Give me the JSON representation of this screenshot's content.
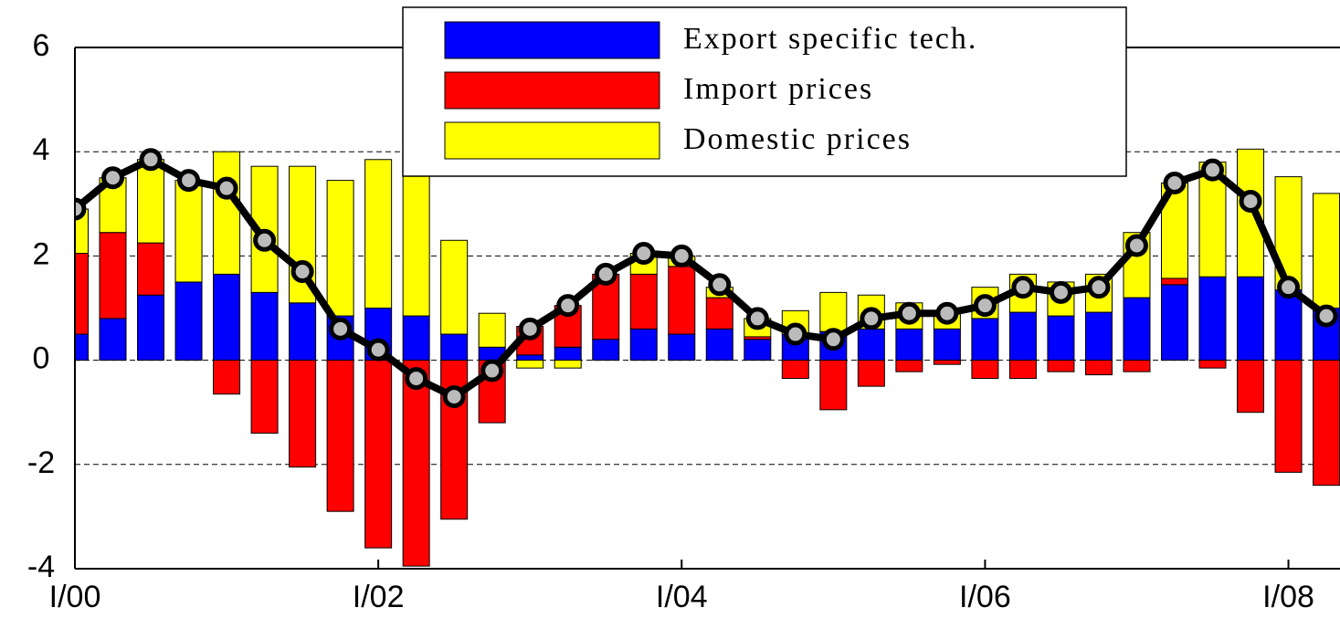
{
  "chart_data": {
    "type": "stacked-bar-line",
    "x": [
      2000,
      2000.25,
      2000.5,
      2000.75,
      2001,
      2001.25,
      2001.5,
      2001.75,
      2002,
      2002.25,
      2002.5,
      2002.75,
      2003,
      2003.25,
      2003.5,
      2003.75,
      2004,
      2004.25,
      2004.5,
      2004.75,
      2005,
      2005.25,
      2005.5,
      2005.75,
      2006,
      2006.25,
      2006.5,
      2006.75,
      2007,
      2007.25,
      2007.5,
      2007.75,
      2008,
      2008.25
    ],
    "series": [
      {
        "name": "Export specific tech.",
        "color": "#0000ff",
        "values": [
          0.5,
          0.8,
          1.25,
          1.5,
          1.65,
          1.3,
          1.1,
          0.85,
          1.0,
          0.85,
          0.5,
          0.25,
          0.1,
          0.25,
          0.4,
          0.6,
          0.5,
          0.6,
          0.4,
          0.5,
          0.55,
          0.6,
          0.6,
          0.6,
          0.8,
          0.92,
          0.85,
          0.92,
          1.2,
          1.45,
          1.6,
          1.6,
          1.35,
          1.0
        ]
      },
      {
        "name": "Import  prices",
        "color": "#ff0000",
        "values": [
          1.55,
          1.65,
          1.0,
          0,
          -0.65,
          -1.4,
          -2.05,
          -2.9,
          -3.6,
          -3.95,
          -3.05,
          -1.2,
          0.55,
          0.8,
          1.25,
          1.05,
          1.3,
          0.6,
          0.05,
          -0.35,
          -0.95,
          -0.5,
          -0.22,
          -0.08,
          -0.35,
          -0.35,
          -0.22,
          -0.28,
          -0.22,
          0.12,
          -0.15,
          -1.0,
          -2.15,
          -2.4
        ]
      },
      {
        "name": "Domestic prices",
        "color": "#ffff00",
        "values": [
          0.85,
          1.05,
          1.6,
          1.95,
          2.35,
          2.42,
          2.62,
          2.6,
          2.85,
          2.75,
          1.8,
          0.65,
          -0.15,
          -0.15,
          0,
          0.4,
          0.2,
          0.2,
          0.35,
          0.45,
          0.75,
          0.65,
          0.5,
          0.35,
          0.6,
          0.73,
          0.65,
          0.73,
          1.25,
          1.83,
          2.2,
          2.45,
          2.17,
          2.2
        ]
      }
    ],
    "line": {
      "color": "#000000",
      "values": [
        2.9,
        3.5,
        3.85,
        3.45,
        3.3,
        2.3,
        1.7,
        0.6,
        0.2,
        -0.35,
        -0.7,
        -0.2,
        0.6,
        1.05,
        1.65,
        2.05,
        2.0,
        1.45,
        0.8,
        0.5,
        0.4,
        0.8,
        0.9,
        0.9,
        1.05,
        1.4,
        1.3,
        1.4,
        2.2,
        3.4,
        3.65,
        3.05,
        1.4,
        0.85
      ]
    },
    "xlim": [
      2000,
      2008.34
    ],
    "xticks": [
      {
        "value": 2000,
        "label": "I/00"
      },
      {
        "value": 2002,
        "label": "I/02"
      },
      {
        "value": 2004,
        "label": "I/04"
      },
      {
        "value": 2006,
        "label": "I/06"
      },
      {
        "value": 2008,
        "label": "I/08"
      }
    ],
    "ylim": [
      -4,
      6
    ],
    "yticks": [
      -4,
      -2,
      0,
      2,
      4,
      6
    ],
    "grid": true
  }
}
